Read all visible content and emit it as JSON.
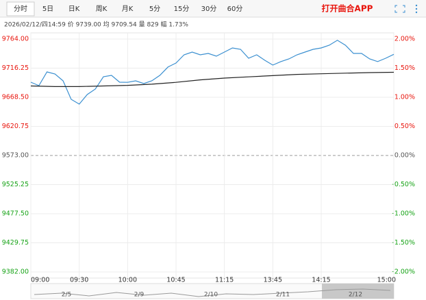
{
  "toolbar": {
    "tabs": [
      "分时",
      "5日",
      "日K",
      "周K",
      "月K",
      "5分",
      "15分",
      "30分",
      "60分"
    ],
    "app_link": "打开曲合APP"
  },
  "info": "2026/02/12/四14:59  价 9739.00  均 9709.54  量 829  幅 1.73%",
  "navigator": {
    "dates": [
      "2/5",
      "2/9",
      "2/10",
      "2/11",
      "2/12"
    ]
  },
  "chart_data": {
    "type": "line",
    "xlim": [
      0,
      225
    ],
    "xticks": [
      {
        "value": 0,
        "label": "09:00"
      },
      {
        "value": 30,
        "label": "09:30"
      },
      {
        "value": 60,
        "label": "10:00"
      },
      {
        "value": 90,
        "label": "10:45"
      },
      {
        "value": 120,
        "label": "11:15"
      },
      {
        "value": 150,
        "label": "13:45"
      },
      {
        "value": 180,
        "label": "14:15"
      },
      {
        "value": 225,
        "label": "15:00"
      }
    ],
    "ylim": [
      9382,
      9764
    ],
    "yticks": [
      {
        "value": 9764,
        "label": "9764.00"
      },
      {
        "value": 9716.25,
        "label": "9716.25"
      },
      {
        "value": 9668.5,
        "label": "9668.50"
      },
      {
        "value": 9620.75,
        "label": "9620.75"
      },
      {
        "value": 9573,
        "label": "9573.00"
      },
      {
        "value": 9525.25,
        "label": "9525.25"
      },
      {
        "value": 9477.5,
        "label": "9477.50"
      },
      {
        "value": 9429.75,
        "label": "9429.75"
      },
      {
        "value": 9382,
        "label": "9382.00"
      }
    ],
    "y2lim": [
      -2,
      2
    ],
    "y2ticks": [
      {
        "value": 2,
        "label": "2.00%"
      },
      {
        "value": 1.5,
        "label": "1.50%"
      },
      {
        "value": 1,
        "label": "1.00%"
      },
      {
        "value": 0.5,
        "label": "0.50%"
      },
      {
        "value": 0,
        "label": "0.00%"
      },
      {
        "value": -0.5,
        "label": "-0.50%"
      },
      {
        "value": -1,
        "label": "-1.00%"
      },
      {
        "value": -1.5,
        "label": "-1.50%"
      },
      {
        "value": -2,
        "label": "-2.00%"
      }
    ],
    "up_color": "#e8140c",
    "down_color": "#17a317",
    "flat_color": "#555555",
    "grid": true,
    "series": [
      {
        "name": "价",
        "color": "#3a8fd0",
        "x": [
          0,
          5,
          10,
          15,
          20,
          25,
          30,
          35,
          40,
          45,
          50,
          55,
          60,
          65,
          70,
          75,
          80,
          85,
          90,
          95,
          100,
          105,
          110,
          115,
          120,
          125,
          130,
          135,
          140,
          145,
          150,
          155,
          160,
          165,
          170,
          175,
          180,
          185,
          190,
          195,
          200,
          205,
          210,
          215,
          220,
          225
        ],
        "values": [
          9693.2,
          9687.6,
          9710.1,
          9706.7,
          9695.5,
          9665.1,
          9657.3,
          9673,
          9682,
          9702.2,
          9704.5,
          9693.2,
          9693,
          9695.5,
          9691,
          9695.5,
          9704.5,
          9718,
          9724.7,
          9738.2,
          9742.7,
          9738.2,
          9740.4,
          9735.9,
          9742.7,
          9749.4,
          9747.2,
          9732.5,
          9738.2,
          9729.2,
          9721.3,
          9727,
          9731.4,
          9738.2,
          9742.7,
          9747.2,
          9749.4,
          9753.9,
          9762,
          9753.9,
          9740.4,
          9740.4,
          9731.4,
          9727,
          9732.5,
          9739
        ]
      },
      {
        "name": "均",
        "color": "#222222",
        "x": [
          0,
          15,
          30,
          45,
          60,
          75,
          90,
          105,
          120,
          135,
          150,
          165,
          180,
          195,
          210,
          225
        ],
        "values": [
          9687,
          9686,
          9686,
          9687,
          9688,
          9690,
          9693,
          9697,
          9700,
          9702,
          9704,
          9706,
          9707,
          9708,
          9709,
          9709.54
        ]
      }
    ]
  }
}
